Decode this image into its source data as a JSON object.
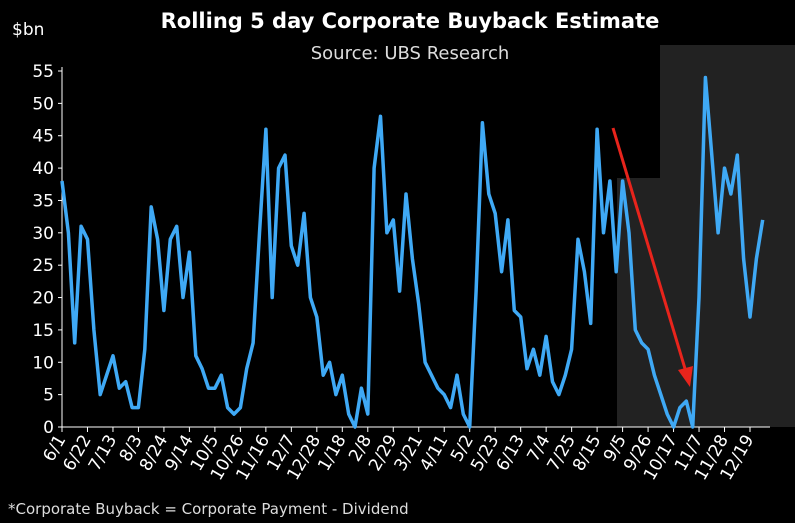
{
  "chart_data": {
    "type": "line",
    "title": "Rolling 5 day Corporate Buyback Estimate",
    "subtitle": "Source: UBS Research",
    "y_label": "$bn",
    "footnote": "*Corporate Buyback = Corporate Payment - Dividend",
    "categories": [
      "6/1",
      null,
      null,
      null,
      "6/22",
      null,
      null,
      null,
      "7/13",
      null,
      null,
      null,
      "8/3",
      null,
      null,
      null,
      "8/24",
      null,
      null,
      null,
      "9/14",
      null,
      null,
      null,
      "10/5",
      null,
      null,
      null,
      "10/26",
      null,
      null,
      null,
      "11/16",
      null,
      null,
      null,
      "12/7",
      null,
      null,
      null,
      "12/28",
      null,
      null,
      null,
      "1/18",
      null,
      null,
      null,
      "2/8",
      null,
      null,
      null,
      "2/29",
      null,
      null,
      null,
      "3/21",
      null,
      null,
      null,
      "4/11",
      null,
      null,
      null,
      "5/2",
      null,
      null,
      null,
      "5/23",
      null,
      null,
      null,
      "6/13",
      null,
      null,
      null,
      "7/4",
      null,
      null,
      null,
      "7/25",
      null,
      null,
      null,
      "8/15",
      null,
      null,
      null,
      "9/5",
      null,
      null,
      null,
      "9/26",
      null,
      null,
      null,
      "10/17",
      null,
      null,
      null,
      "11/7",
      null,
      null,
      null,
      "11/28",
      null,
      null,
      null,
      "12/19",
      null,
      null
    ],
    "series": [
      {
        "name": "Buyback",
        "color": "#3fa9f5",
        "values": [
          38,
          30,
          13,
          31,
          29,
          15,
          5,
          8,
          11,
          6,
          7,
          3,
          3,
          12,
          34,
          29,
          18,
          29,
          31,
          20,
          27,
          11,
          9,
          6,
          6,
          8,
          3,
          2,
          3,
          9,
          13,
          30,
          46,
          20,
          40,
          42,
          28,
          25,
          33,
          20,
          17,
          8,
          10,
          5,
          8,
          2,
          0,
          6,
          2,
          40,
          48,
          30,
          32,
          21,
          36,
          26,
          19,
          10,
          8,
          6,
          5,
          3,
          8,
          2,
          0,
          21,
          47,
          36,
          33,
          24,
          32,
          18,
          17,
          9,
          12,
          8,
          14,
          7,
          5,
          8,
          12,
          29,
          24,
          16,
          46,
          30,
          38,
          24,
          38,
          30,
          15,
          13,
          12,
          8,
          5,
          2,
          0,
          3,
          4,
          0,
          20,
          54,
          42,
          30,
          40,
          36,
          42,
          26,
          17,
          26,
          32
        ]
      }
    ],
    "ylim": [
      0,
      55
    ],
    "yticks": [
      0,
      5,
      10,
      15,
      20,
      25,
      30,
      35,
      40,
      45,
      50,
      55
    ]
  }
}
